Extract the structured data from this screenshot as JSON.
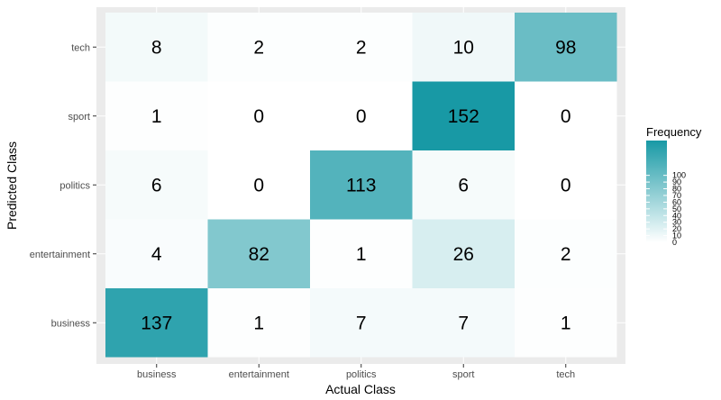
{
  "chart_data": {
    "type": "heatmap",
    "title": "",
    "xlabel": "Actual Class",
    "ylabel": "Predicted Class",
    "x_categories": [
      "business",
      "entertainment",
      "politics",
      "sport",
      "tech"
    ],
    "y_categories": [
      "business",
      "entertainment",
      "politics",
      "sport",
      "tech"
    ],
    "values": [
      [
        137,
        1,
        7,
        7,
        1
      ],
      [
        4,
        82,
        1,
        26,
        2
      ],
      [
        6,
        0,
        113,
        6,
        0
      ],
      [
        1,
        0,
        0,
        152,
        0
      ],
      [
        8,
        2,
        2,
        10,
        98
      ]
    ],
    "legend": {
      "title": "Frequency",
      "ticks": [
        0,
        10,
        20,
        30,
        40,
        50,
        60,
        70,
        80,
        90,
        100
      ],
      "placement": "right"
    },
    "color_low": "#ffffff",
    "color_high": "#1899a5",
    "value_max": 152,
    "panel_background": "#ebebeb",
    "grid": true
  }
}
